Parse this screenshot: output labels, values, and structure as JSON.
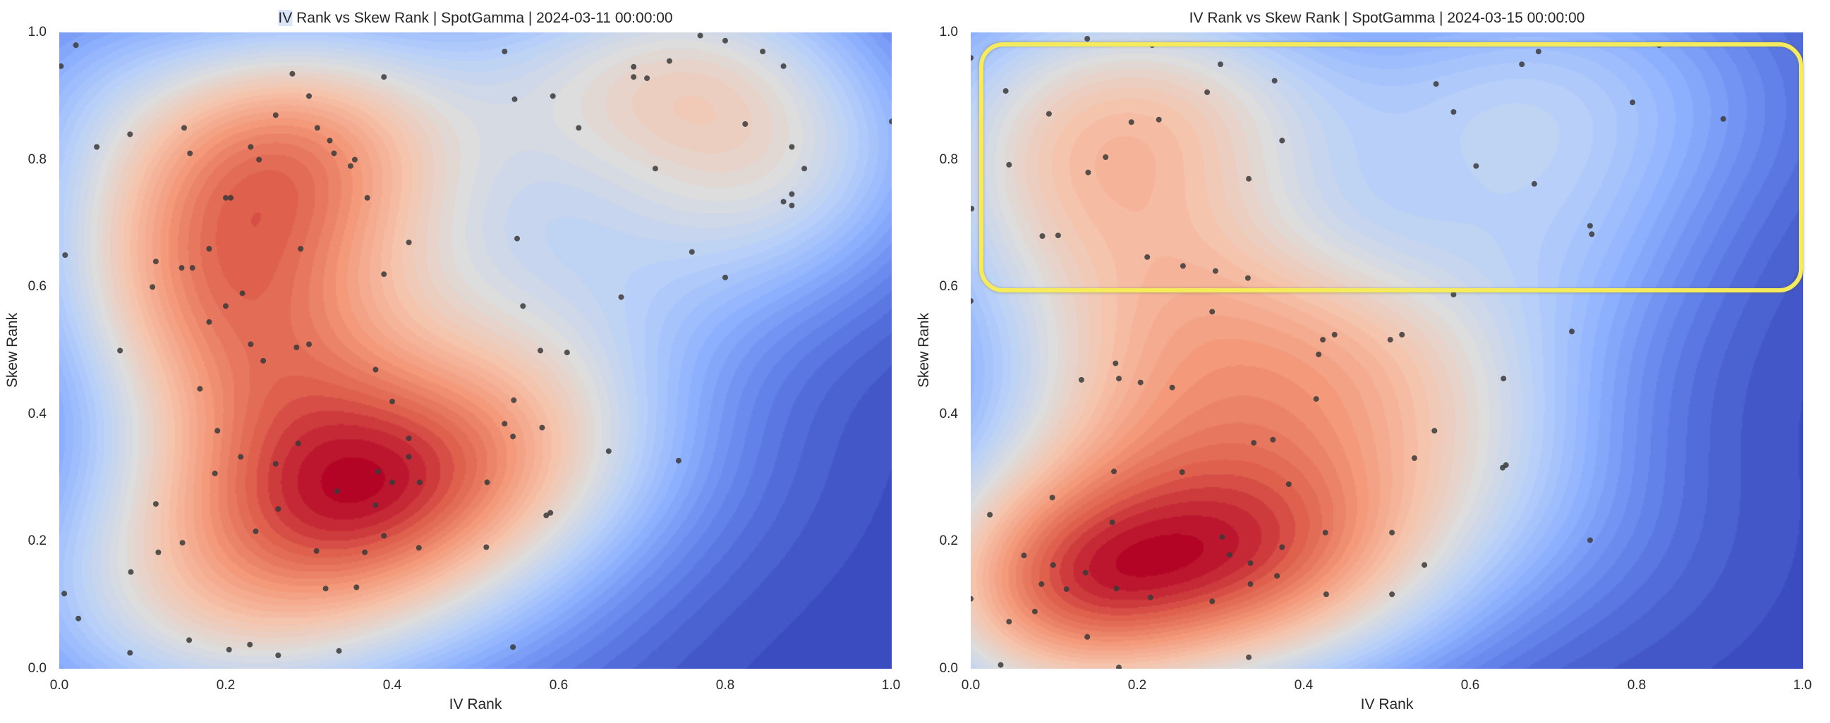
{
  "chart_data": [
    {
      "type": "scatter",
      "overlay": "kde-density-heatmap",
      "colormap": "coolwarm",
      "title": "IV Rank vs Skew Rank | SpotGamma | 2024-03-11 00:00:00",
      "title_parts": {
        "highlighted": "IV",
        "rest": " Rank vs Skew Rank | SpotGamma | 2024-03-11 00:00:00"
      },
      "xlabel": "IV Rank",
      "ylabel": "Skew Rank",
      "xlim": [
        0,
        1
      ],
      "ylim": [
        0,
        1
      ],
      "xticks": [
        "0.0",
        "0.2",
        "0.4",
        "0.6",
        "0.8",
        "1.0"
      ],
      "yticks": [
        "0.0",
        "0.2",
        "0.4",
        "0.6",
        "0.8",
        "1.0"
      ],
      "grid": false,
      "point_color": "#3a3a3a",
      "points": [
        [
          0.02,
          0.98
        ],
        [
          0.002,
          0.947
        ],
        [
          0.28,
          0.935
        ],
        [
          0.39,
          0.93
        ],
        [
          0.3,
          0.9
        ],
        [
          0.26,
          0.87
        ],
        [
          0.15,
          0.85
        ],
        [
          0.31,
          0.85
        ],
        [
          0.085,
          0.84
        ],
        [
          0.325,
          0.83
        ],
        [
          0.045,
          0.82
        ],
        [
          0.23,
          0.82
        ],
        [
          0.157,
          0.81
        ],
        [
          0.33,
          0.81
        ],
        [
          0.355,
          0.8
        ],
        [
          0.24,
          0.8
        ],
        [
          0.35,
          0.79
        ],
        [
          0.2,
          0.74
        ],
        [
          0.206,
          0.74
        ],
        [
          0.37,
          0.74
        ],
        [
          0.42,
          0.67
        ],
        [
          0.007,
          0.65
        ],
        [
          0.18,
          0.66
        ],
        [
          0.29,
          0.66
        ],
        [
          0.116,
          0.64
        ],
        [
          0.147,
          0.63
        ],
        [
          0.16,
          0.63
        ],
        [
          0.39,
          0.62
        ],
        [
          0.112,
          0.6
        ],
        [
          0.22,
          0.59
        ],
        [
          0.2,
          0.57
        ],
        [
          0.18,
          0.545
        ],
        [
          0.073,
          0.5
        ],
        [
          0.23,
          0.51
        ],
        [
          0.285,
          0.505
        ],
        [
          0.3,
          0.51
        ],
        [
          0.77,
          0.995
        ],
        [
          0.8,
          0.987
        ],
        [
          0.535,
          0.97
        ],
        [
          0.845,
          0.97
        ],
        [
          0.733,
          0.955
        ],
        [
          0.69,
          0.946
        ],
        [
          0.87,
          0.947
        ],
        [
          0.69,
          0.93
        ],
        [
          0.706,
          0.928
        ],
        [
          0.547,
          0.895
        ],
        [
          0.593,
          0.9
        ],
        [
          0.824,
          0.856
        ],
        [
          0.624,
          0.85
        ],
        [
          1.0,
          0.86
        ],
        [
          0.88,
          0.82
        ],
        [
          0.716,
          0.786
        ],
        [
          0.895,
          0.786
        ],
        [
          0.88,
          0.746
        ],
        [
          0.87,
          0.734
        ],
        [
          0.88,
          0.728
        ],
        [
          0.55,
          0.676
        ],
        [
          0.76,
          0.655
        ],
        [
          0.8,
          0.615
        ],
        [
          0.675,
          0.584
        ],
        [
          0.557,
          0.57
        ],
        [
          0.578,
          0.5
        ],
        [
          0.61,
          0.497
        ],
        [
          0.245,
          0.484
        ],
        [
          0.38,
          0.47
        ],
        [
          0.169,
          0.44
        ],
        [
          0.4,
          0.42
        ],
        [
          0.42,
          0.362
        ],
        [
          0.19,
          0.374
        ],
        [
          0.287,
          0.354
        ],
        [
          0.42,
          0.333
        ],
        [
          0.218,
          0.333
        ],
        [
          0.26,
          0.322
        ],
        [
          0.187,
          0.307
        ],
        [
          0.383,
          0.31
        ],
        [
          0.4,
          0.293
        ],
        [
          0.433,
          0.293
        ],
        [
          0.334,
          0.279
        ],
        [
          0.116,
          0.259
        ],
        [
          0.263,
          0.251
        ],
        [
          0.38,
          0.257
        ],
        [
          0.236,
          0.216
        ],
        [
          0.39,
          0.209
        ],
        [
          0.148,
          0.198
        ],
        [
          0.309,
          0.185
        ],
        [
          0.367,
          0.183
        ],
        [
          0.432,
          0.19
        ],
        [
          0.119,
          0.183
        ],
        [
          0.086,
          0.152
        ],
        [
          0.32,
          0.126
        ],
        [
          0.357,
          0.128
        ],
        [
          0.006,
          0.118
        ],
        [
          0.023,
          0.079
        ],
        [
          0.156,
          0.045
        ],
        [
          0.085,
          0.025
        ],
        [
          0.204,
          0.03
        ],
        [
          0.229,
          0.038
        ],
        [
          0.263,
          0.021
        ],
        [
          0.336,
          0.028
        ],
        [
          0.546,
          0.422
        ],
        [
          0.535,
          0.385
        ],
        [
          0.58,
          0.379
        ],
        [
          0.545,
          0.365
        ],
        [
          0.66,
          0.342
        ],
        [
          0.744,
          0.327
        ],
        [
          0.514,
          0.293
        ],
        [
          0.585,
          0.241
        ],
        [
          0.59,
          0.245
        ],
        [
          0.513,
          0.191
        ],
        [
          0.545,
          0.034
        ]
      ]
    },
    {
      "type": "scatter",
      "overlay": "kde-density-heatmap",
      "colormap": "coolwarm",
      "title": "IV Rank vs Skew Rank | SpotGamma | 2024-03-15 00:00:00",
      "xlabel": "IV Rank",
      "ylabel": "Skew Rank",
      "xlim": [
        0,
        1
      ],
      "ylim": [
        0,
        1
      ],
      "xticks": [
        "0.0",
        "0.2",
        "0.4",
        "0.6",
        "0.8",
        "1.0"
      ],
      "yticks": [
        "0.0",
        "0.2",
        "0.4",
        "0.6",
        "0.8",
        "1.0"
      ],
      "grid": false,
      "point_color": "#3a3a3a",
      "annotation": {
        "type": "highlight-box",
        "color": "#f6eb5a",
        "x_range": [
          0.01,
          0.99
        ],
        "y_range": [
          0.605,
          0.985
        ]
      },
      "points": [
        [
          0.14,
          0.99
        ],
        [
          0.218,
          0.98
        ],
        [
          0.0,
          0.96
        ],
        [
          0.3,
          0.95
        ],
        [
          0.042,
          0.908
        ],
        [
          0.365,
          0.924
        ],
        [
          0.284,
          0.906
        ],
        [
          0.094,
          0.872
        ],
        [
          0.193,
          0.859
        ],
        [
          0.226,
          0.863
        ],
        [
          0.374,
          0.83
        ],
        [
          0.046,
          0.792
        ],
        [
          0.162,
          0.804
        ],
        [
          0.141,
          0.78
        ],
        [
          0.334,
          0.77
        ],
        [
          0.001,
          0.723
        ],
        [
          0.086,
          0.68
        ],
        [
          0.105,
          0.681
        ],
        [
          0.212,
          0.647
        ],
        [
          0.255,
          0.633
        ],
        [
          0.294,
          0.625
        ],
        [
          0.333,
          0.614
        ],
        [
          0.0,
          0.578
        ],
        [
          0.29,
          0.561
        ],
        [
          0.423,
          0.517
        ],
        [
          0.437,
          0.525
        ],
        [
          0.827,
          0.98
        ],
        [
          0.682,
          0.97
        ],
        [
          0.662,
          0.95
        ],
        [
          0.559,
          0.919
        ],
        [
          0.795,
          0.89
        ],
        [
          0.904,
          0.864
        ],
        [
          0.58,
          0.875
        ],
        [
          0.607,
          0.79
        ],
        [
          0.677,
          0.762
        ],
        [
          0.744,
          0.696
        ],
        [
          0.746,
          0.683
        ],
        [
          0.58,
          0.588
        ],
        [
          0.722,
          0.53
        ],
        [
          0.518,
          0.525
        ],
        [
          0.504,
          0.517
        ],
        [
          0.418,
          0.494
        ],
        [
          0.174,
          0.48
        ],
        [
          0.133,
          0.454
        ],
        [
          0.178,
          0.456
        ],
        [
          0.204,
          0.45
        ],
        [
          0.242,
          0.442
        ],
        [
          0.415,
          0.424
        ],
        [
          0.34,
          0.355
        ],
        [
          0.363,
          0.36
        ],
        [
          0.172,
          0.31
        ],
        [
          0.254,
          0.309
        ],
        [
          0.382,
          0.29
        ],
        [
          0.098,
          0.269
        ],
        [
          0.023,
          0.242
        ],
        [
          0.17,
          0.23
        ],
        [
          0.426,
          0.214
        ],
        [
          0.302,
          0.207
        ],
        [
          0.374,
          0.191
        ],
        [
          0.311,
          0.179
        ],
        [
          0.064,
          0.178
        ],
        [
          0.336,
          0.166
        ],
        [
          0.099,
          0.163
        ],
        [
          0.138,
          0.151
        ],
        [
          0.368,
          0.146
        ],
        [
          0.085,
          0.133
        ],
        [
          0.115,
          0.125
        ],
        [
          0.175,
          0.126
        ],
        [
          0.336,
          0.133
        ],
        [
          0.427,
          0.117
        ],
        [
          0.0,
          0.11
        ],
        [
          0.216,
          0.112
        ],
        [
          0.29,
          0.106
        ],
        [
          0.077,
          0.09
        ],
        [
          0.046,
          0.074
        ],
        [
          0.14,
          0.05
        ],
        [
          0.334,
          0.018
        ],
        [
          0.036,
          0.006
        ],
        [
          0.178,
          0.002
        ],
        [
          0.64,
          0.456
        ],
        [
          0.557,
          0.374
        ],
        [
          0.533,
          0.331
        ],
        [
          0.639,
          0.316
        ],
        [
          0.643,
          0.32
        ],
        [
          0.506,
          0.214
        ],
        [
          0.744,
          0.202
        ],
        [
          0.545,
          0.163
        ],
        [
          0.506,
          0.117
        ]
      ]
    }
  ]
}
